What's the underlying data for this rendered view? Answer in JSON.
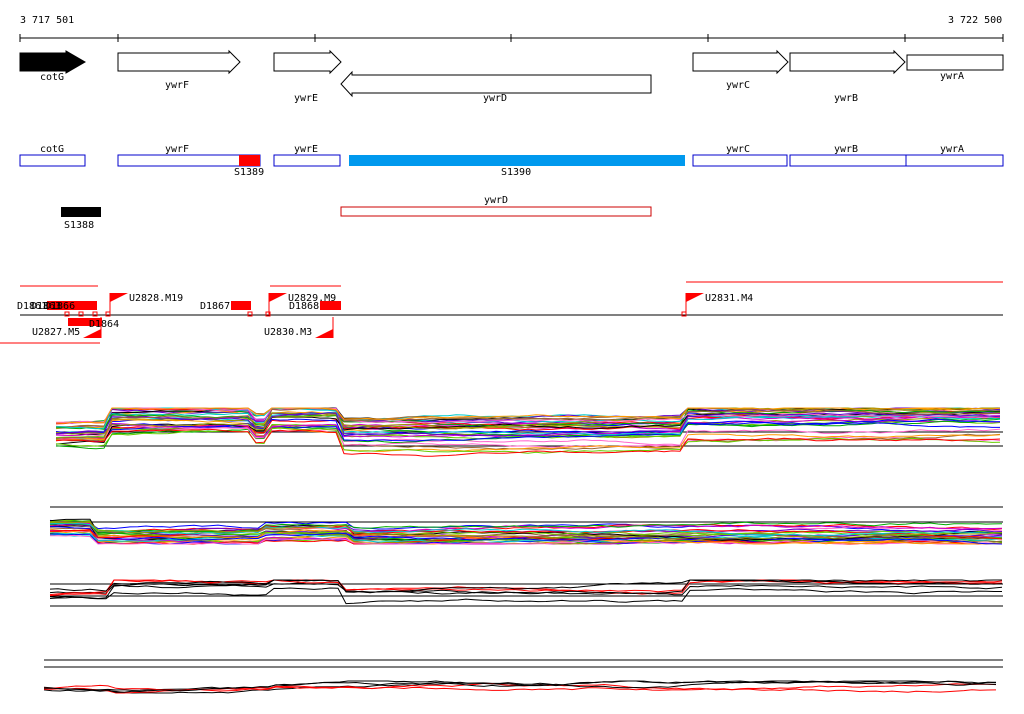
{
  "coords": {
    "start": "3 717 501",
    "end": "3 722 500"
  },
  "genes": [
    {
      "name": "cotG",
      "strand": "+",
      "filled": true
    },
    {
      "name": "ywrF",
      "strand": "+",
      "filled": false
    },
    {
      "name": "ywrE",
      "strand": "+",
      "filled": false
    },
    {
      "name": "ywrD",
      "strand": "-",
      "filled": false
    },
    {
      "name": "ywrC",
      "strand": "+",
      "filled": false
    },
    {
      "name": "ywrB",
      "strand": "+",
      "filled": false
    },
    {
      "name": "ywrA",
      "strand": "+",
      "filled": false
    }
  ],
  "segment_labels": [
    "cotG",
    "ywrF",
    "ywrE",
    "ywrC",
    "ywrB",
    "ywrA",
    "ywrD"
  ],
  "features": [
    {
      "name": "S1389",
      "color": "#ff0000"
    },
    {
      "name": "S1390",
      "color": "#0099ee"
    },
    {
      "name": "S1388",
      "color": "#000000"
    }
  ],
  "promoters": [
    "U2828.M19",
    "U2829.M9",
    "U2831.M4",
    "U2827.M5",
    "U2830.M3"
  ],
  "terminators": [
    "D1861",
    "D1863",
    "D1866",
    "D1867",
    "D1868",
    "D1864"
  ],
  "colors": {
    "gene_outline": "#000000",
    "segment_outline": "#0000cc",
    "promoter": "#ff0000",
    "terminator": "#ff0000",
    "highlight_segment": "#0099ee"
  }
}
